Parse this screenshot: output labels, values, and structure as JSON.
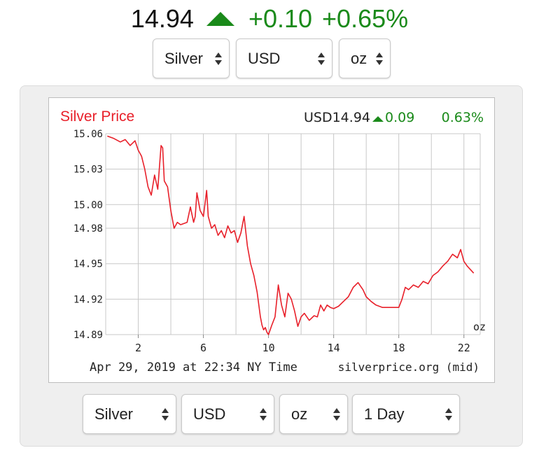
{
  "quote": {
    "price": "14.94",
    "change": "+0.10",
    "change_pct": "+0.65%",
    "direction_icon": "triangle-up-icon",
    "up_color": "#1a8a1a"
  },
  "top_selectors": {
    "metal": "Silver",
    "currency": "USD",
    "unit": "oz"
  },
  "chart_header": {
    "title": "Silver Price",
    "price_text": "USD14.94",
    "change": "0.09",
    "change_pct": "0.63%",
    "unit_label": "oz",
    "timestamp": "Apr 29, 2019 at 22:34 NY Time",
    "source": "silverprice.org (mid)",
    "title_color": "#e8202a",
    "line_color": "#e8202a"
  },
  "chart_data": {
    "type": "line",
    "title": "Silver Price",
    "xlabel": "",
    "ylabel": "",
    "x_ticks": [
      "2",
      "6",
      "10",
      "14",
      "18",
      "22"
    ],
    "x_tick_values": [
      2,
      6,
      10,
      14,
      18,
      22
    ],
    "y_ticks": [
      "15.06",
      "15.03",
      "15.00",
      "14.98",
      "14.95",
      "14.92",
      "14.89"
    ],
    "y_tick_values": [
      15.06,
      15.03,
      15.0,
      14.98,
      14.95,
      14.92,
      14.89
    ],
    "xlim": [
      0,
      23
    ],
    "ylim": [
      14.89,
      15.06
    ],
    "grid": true,
    "series": [
      {
        "x": [
          0.1,
          0.5,
          0.9,
          1.2,
          1.5,
          1.8,
          2.0,
          2.2,
          2.4,
          2.6,
          2.8,
          3.0,
          3.2,
          3.4,
          3.5,
          3.6,
          3.8,
          3.9,
          4.0,
          4.2,
          4.4,
          4.6,
          5.0,
          5.2,
          5.4,
          5.5,
          5.6,
          5.8,
          6.0,
          6.2,
          6.3,
          6.5,
          6.7,
          6.9,
          7.1,
          7.3,
          7.5,
          7.7,
          7.9,
          8.1,
          8.3,
          8.5,
          8.7,
          8.9,
          9.1,
          9.3,
          9.5,
          9.6,
          9.7,
          9.8,
          9.9,
          10.0,
          10.2,
          10.4,
          10.6,
          10.8,
          11.0,
          11.2,
          11.4,
          11.6,
          11.8,
          12.0,
          12.2,
          12.5,
          12.8,
          13.0,
          13.2,
          13.4,
          13.6,
          13.8,
          14.0,
          14.3,
          14.6,
          14.9,
          15.2,
          15.5,
          15.8,
          16.0,
          16.3,
          16.6,
          17.0,
          17.5,
          18.0,
          18.2,
          18.4,
          18.6,
          18.9,
          19.2,
          19.5,
          19.8,
          20.1,
          20.4,
          20.7,
          21.0,
          21.3,
          21.6,
          21.8,
          22.0,
          22.2,
          22.4,
          22.6
        ],
        "y": [
          15.058,
          15.056,
          15.053,
          15.055,
          15.05,
          15.054,
          15.046,
          15.041,
          15.03,
          15.015,
          15.008,
          15.025,
          15.013,
          15.05,
          15.048,
          15.02,
          15.015,
          15.005,
          14.995,
          14.98,
          14.985,
          14.983,
          14.985,
          14.998,
          14.985,
          14.99,
          15.01,
          14.995,
          14.99,
          15.012,
          14.99,
          14.98,
          14.983,
          14.974,
          14.978,
          14.972,
          14.982,
          14.976,
          14.978,
          14.968,
          14.976,
          14.99,
          14.965,
          14.95,
          14.94,
          14.926,
          14.905,
          14.898,
          14.894,
          14.896,
          14.892,
          14.89,
          14.898,
          14.905,
          14.932,
          14.915,
          14.905,
          14.925,
          14.92,
          14.91,
          14.897,
          14.905,
          14.908,
          14.902,
          14.906,
          14.905,
          14.915,
          14.91,
          14.915,
          14.913,
          14.912,
          14.914,
          14.918,
          14.922,
          14.93,
          14.934,
          14.928,
          14.922,
          14.918,
          14.915,
          14.913,
          14.913,
          14.913,
          14.92,
          14.93,
          14.928,
          14.932,
          14.93,
          14.935,
          14.933,
          14.94,
          14.943,
          14.948,
          14.952,
          14.958,
          14.955,
          14.962,
          14.952,
          14.948,
          14.945,
          14.942
        ]
      }
    ]
  },
  "bottom_selectors": {
    "metal": "Silver",
    "currency": "USD",
    "unit": "oz",
    "range": "1 Day"
  }
}
